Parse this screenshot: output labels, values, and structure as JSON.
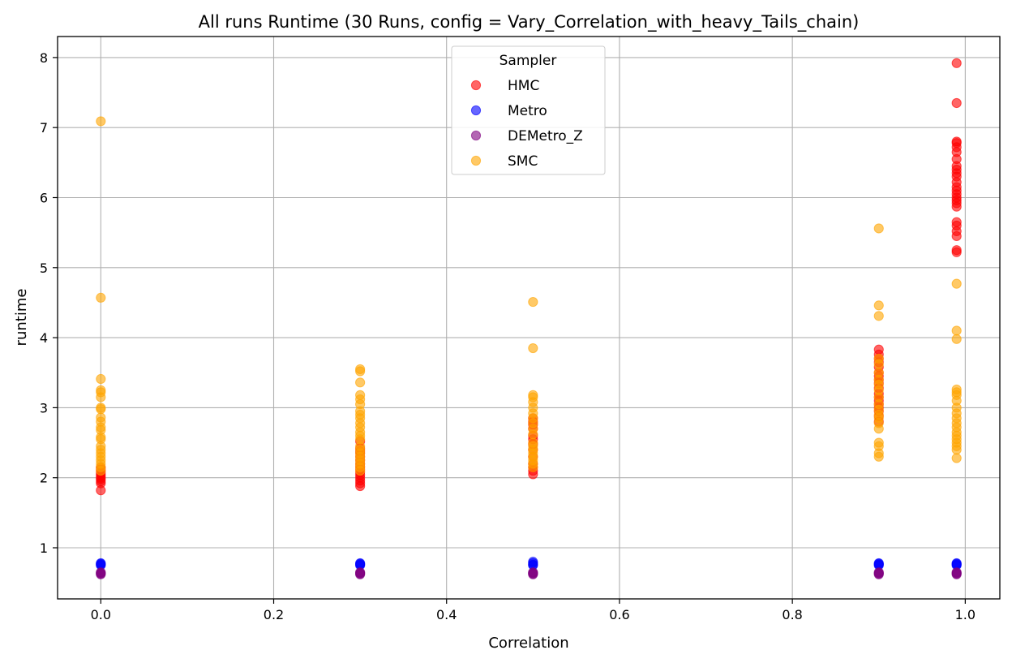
{
  "chart_data": {
    "type": "scatter",
    "title": "All runs Runtime (30 Runs, config = Vary_Correlation_with_heavy_Tails_chain)",
    "xlabel": "Correlation",
    "ylabel": "runtime",
    "xlim": [
      -0.05,
      1.04
    ],
    "ylim": [
      0.27,
      8.3
    ],
    "xticks": [
      0.0,
      0.2,
      0.4,
      0.6,
      0.8,
      1.0
    ],
    "xtick_labels": [
      "0.0",
      "0.2",
      "0.4",
      "0.6",
      "0.8",
      "1.0"
    ],
    "yticks": [
      1,
      2,
      3,
      4,
      5,
      6,
      7,
      8
    ],
    "ytick_labels": [
      "1",
      "2",
      "3",
      "4",
      "5",
      "6",
      "7",
      "8"
    ],
    "grid": true,
    "legend": {
      "title": "Sampler",
      "placement": "upper-center"
    },
    "series": [
      {
        "name": "HMC",
        "color": "#ff0000",
        "points": [
          [
            0.0,
            1.82
          ],
          [
            0.0,
            1.92
          ],
          [
            0.0,
            1.95
          ],
          [
            0.0,
            1.98
          ],
          [
            0.0,
            2.0
          ],
          [
            0.0,
            2.03
          ],
          [
            0.0,
            2.06
          ],
          [
            0.0,
            2.09
          ],
          [
            0.0,
            2.12
          ],
          [
            0.0,
            2.15
          ],
          [
            0.3,
            1.88
          ],
          [
            0.3,
            1.92
          ],
          [
            0.3,
            1.96
          ],
          [
            0.3,
            2.0
          ],
          [
            0.3,
            2.04
          ],
          [
            0.3,
            2.08
          ],
          [
            0.3,
            2.12
          ],
          [
            0.3,
            2.16
          ],
          [
            0.3,
            2.2
          ],
          [
            0.3,
            2.25
          ],
          [
            0.3,
            2.3
          ],
          [
            0.3,
            2.35
          ],
          [
            0.3,
            2.38
          ],
          [
            0.3,
            2.42
          ],
          [
            0.3,
            2.52
          ],
          [
            0.5,
            2.05
          ],
          [
            0.5,
            2.1
          ],
          [
            0.5,
            2.15
          ],
          [
            0.5,
            2.2
          ],
          [
            0.5,
            2.3
          ],
          [
            0.5,
            2.4
          ],
          [
            0.5,
            2.48
          ],
          [
            0.5,
            2.55
          ],
          [
            0.5,
            2.6
          ],
          [
            0.5,
            2.7
          ],
          [
            0.5,
            2.76
          ],
          [
            0.5,
            2.8
          ],
          [
            0.5,
            2.85
          ],
          [
            0.9,
            2.8
          ],
          [
            0.9,
            2.88
          ],
          [
            0.9,
            2.95
          ],
          [
            0.9,
            3.0
          ],
          [
            0.9,
            3.05
          ],
          [
            0.9,
            3.1
          ],
          [
            0.9,
            3.15
          ],
          [
            0.9,
            3.2
          ],
          [
            0.9,
            3.28
          ],
          [
            0.9,
            3.35
          ],
          [
            0.9,
            3.4
          ],
          [
            0.9,
            3.45
          ],
          [
            0.9,
            3.5
          ],
          [
            0.9,
            3.58
          ],
          [
            0.9,
            3.65
          ],
          [
            0.9,
            3.7
          ],
          [
            0.9,
            3.76
          ],
          [
            0.9,
            3.83
          ],
          [
            0.99,
            5.22
          ],
          [
            0.99,
            5.25
          ],
          [
            0.99,
            5.45
          ],
          [
            0.99,
            5.52
          ],
          [
            0.99,
            5.6
          ],
          [
            0.99,
            5.65
          ],
          [
            0.99,
            5.87
          ],
          [
            0.99,
            5.92
          ],
          [
            0.99,
            5.96
          ],
          [
            0.99,
            6.0
          ],
          [
            0.99,
            6.05
          ],
          [
            0.99,
            6.1
          ],
          [
            0.99,
            6.15
          ],
          [
            0.99,
            6.22
          ],
          [
            0.99,
            6.3
          ],
          [
            0.99,
            6.35
          ],
          [
            0.99,
            6.4
          ],
          [
            0.99,
            6.45
          ],
          [
            0.99,
            6.55
          ],
          [
            0.99,
            6.65
          ],
          [
            0.99,
            6.72
          ],
          [
            0.99,
            6.78
          ],
          [
            0.99,
            6.8
          ],
          [
            0.99,
            7.35
          ],
          [
            0.99,
            7.92
          ]
        ]
      },
      {
        "name": "Metro",
        "color": "#0000ff",
        "points": [
          [
            0.0,
            0.75
          ],
          [
            0.0,
            0.76
          ],
          [
            0.0,
            0.77
          ],
          [
            0.0,
            0.78
          ],
          [
            0.3,
            0.75
          ],
          [
            0.3,
            0.76
          ],
          [
            0.3,
            0.77
          ],
          [
            0.3,
            0.78
          ],
          [
            0.5,
            0.75
          ],
          [
            0.5,
            0.76
          ],
          [
            0.5,
            0.78
          ],
          [
            0.5,
            0.8
          ],
          [
            0.9,
            0.75
          ],
          [
            0.9,
            0.76
          ],
          [
            0.9,
            0.77
          ],
          [
            0.9,
            0.78
          ],
          [
            0.99,
            0.75
          ],
          [
            0.99,
            0.76
          ],
          [
            0.99,
            0.77
          ],
          [
            0.99,
            0.78
          ]
        ]
      },
      {
        "name": "DEMetro_Z",
        "color": "#800080",
        "points": [
          [
            0.0,
            0.62
          ],
          [
            0.0,
            0.63
          ],
          [
            0.0,
            0.64
          ],
          [
            0.0,
            0.65
          ],
          [
            0.3,
            0.62
          ],
          [
            0.3,
            0.63
          ],
          [
            0.3,
            0.64
          ],
          [
            0.3,
            0.65
          ],
          [
            0.5,
            0.62
          ],
          [
            0.5,
            0.63
          ],
          [
            0.5,
            0.64
          ],
          [
            0.5,
            0.65
          ],
          [
            0.9,
            0.62
          ],
          [
            0.9,
            0.63
          ],
          [
            0.9,
            0.64
          ],
          [
            0.9,
            0.65
          ],
          [
            0.99,
            0.62
          ],
          [
            0.99,
            0.63
          ],
          [
            0.99,
            0.64
          ],
          [
            0.99,
            0.65
          ]
        ]
      },
      {
        "name": "SMC",
        "color": "#ffa500",
        "points": [
          [
            0.0,
            2.1
          ],
          [
            0.0,
            2.15
          ],
          [
            0.0,
            2.2
          ],
          [
            0.0,
            2.25
          ],
          [
            0.0,
            2.3
          ],
          [
            0.0,
            2.35
          ],
          [
            0.0,
            2.4
          ],
          [
            0.0,
            2.45
          ],
          [
            0.0,
            2.55
          ],
          [
            0.0,
            2.58
          ],
          [
            0.0,
            2.68
          ],
          [
            0.0,
            2.72
          ],
          [
            0.0,
            2.8
          ],
          [
            0.0,
            2.86
          ],
          [
            0.0,
            2.98
          ],
          [
            0.0,
            3.0
          ],
          [
            0.0,
            3.15
          ],
          [
            0.0,
            3.22
          ],
          [
            0.0,
            3.25
          ],
          [
            0.0,
            3.41
          ],
          [
            0.0,
            4.57
          ],
          [
            0.0,
            7.09
          ],
          [
            0.3,
            2.1
          ],
          [
            0.3,
            2.15
          ],
          [
            0.3,
            2.2
          ],
          [
            0.3,
            2.25
          ],
          [
            0.3,
            2.3
          ],
          [
            0.3,
            2.35
          ],
          [
            0.3,
            2.4
          ],
          [
            0.3,
            2.45
          ],
          [
            0.3,
            2.55
          ],
          [
            0.3,
            2.6
          ],
          [
            0.3,
            2.65
          ],
          [
            0.3,
            2.72
          ],
          [
            0.3,
            2.78
          ],
          [
            0.3,
            2.85
          ],
          [
            0.3,
            2.9
          ],
          [
            0.3,
            2.95
          ],
          [
            0.3,
            3.05
          ],
          [
            0.3,
            3.12
          ],
          [
            0.3,
            3.18
          ],
          [
            0.3,
            3.36
          ],
          [
            0.3,
            3.52
          ],
          [
            0.3,
            3.55
          ],
          [
            0.5,
            2.15
          ],
          [
            0.5,
            2.2
          ],
          [
            0.5,
            2.25
          ],
          [
            0.5,
            2.3
          ],
          [
            0.5,
            2.35
          ],
          [
            0.5,
            2.4
          ],
          [
            0.5,
            2.45
          ],
          [
            0.5,
            2.5
          ],
          [
            0.5,
            2.62
          ],
          [
            0.5,
            2.7
          ],
          [
            0.5,
            2.78
          ],
          [
            0.5,
            2.85
          ],
          [
            0.5,
            2.92
          ],
          [
            0.5,
            3.0
          ],
          [
            0.5,
            3.08
          ],
          [
            0.5,
            3.15
          ],
          [
            0.5,
            3.18
          ],
          [
            0.5,
            3.85
          ],
          [
            0.5,
            4.51
          ],
          [
            0.9,
            2.3
          ],
          [
            0.9,
            2.35
          ],
          [
            0.9,
            2.45
          ],
          [
            0.9,
            2.5
          ],
          [
            0.9,
            2.7
          ],
          [
            0.9,
            2.78
          ],
          [
            0.9,
            2.85
          ],
          [
            0.9,
            2.9
          ],
          [
            0.9,
            2.97
          ],
          [
            0.9,
            3.05
          ],
          [
            0.9,
            3.15
          ],
          [
            0.9,
            3.25
          ],
          [
            0.9,
            3.33
          ],
          [
            0.9,
            3.4
          ],
          [
            0.9,
            3.5
          ],
          [
            0.9,
            3.62
          ],
          [
            0.9,
            3.7
          ],
          [
            0.9,
            4.31
          ],
          [
            0.9,
            4.46
          ],
          [
            0.9,
            5.56
          ],
          [
            0.99,
            2.28
          ],
          [
            0.99,
            2.4
          ],
          [
            0.99,
            2.45
          ],
          [
            0.99,
            2.5
          ],
          [
            0.99,
            2.55
          ],
          [
            0.99,
            2.6
          ],
          [
            0.99,
            2.65
          ],
          [
            0.99,
            2.72
          ],
          [
            0.99,
            2.78
          ],
          [
            0.99,
            2.85
          ],
          [
            0.99,
            2.92
          ],
          [
            0.99,
            3.0
          ],
          [
            0.99,
            3.1
          ],
          [
            0.99,
            3.18
          ],
          [
            0.99,
            3.22
          ],
          [
            0.99,
            3.26
          ],
          [
            0.99,
            3.98
          ],
          [
            0.99,
            4.1
          ],
          [
            0.99,
            4.77
          ]
        ]
      }
    ]
  }
}
